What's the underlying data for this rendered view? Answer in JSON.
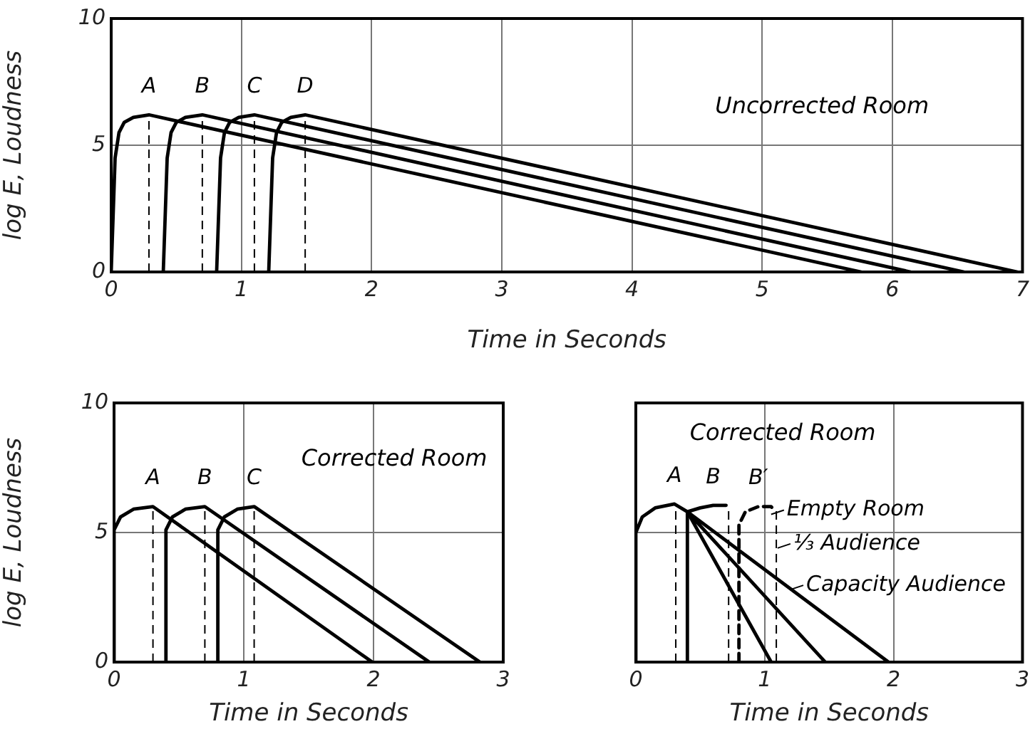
{
  "chart_data": [
    {
      "type": "line",
      "title": "Uncorrected Room",
      "xlabel": "Time in Seconds",
      "ylabel": "log E, Loudness",
      "xlim": [
        0,
        7
      ],
      "ylim": [
        0,
        10
      ],
      "xticks": [
        0,
        1,
        2,
        3,
        4,
        5,
        6,
        7
      ],
      "yticks": [
        0,
        5,
        10
      ],
      "grid": true,
      "marker": "none",
      "line_style": "solid",
      "series": [
        {
          "name": "A",
          "color": "#000000",
          "x": [
            0,
            0.03,
            0.06,
            0.1,
            0.17,
            0.29,
            5.76
          ],
          "values": [
            0,
            4.5,
            5.5,
            5.9,
            6.1,
            6.2,
            0
          ]
        },
        {
          "name": "B",
          "color": "#000000",
          "x": [
            0.4,
            0.43,
            0.46,
            0.5,
            0.57,
            0.7,
            6.14
          ],
          "values": [
            0,
            4.5,
            5.5,
            5.9,
            6.1,
            6.2,
            0
          ]
        },
        {
          "name": "C",
          "color": "#000000",
          "x": [
            0.81,
            0.84,
            0.87,
            0.91,
            0.98,
            1.1,
            6.55
          ],
          "values": [
            0,
            4.5,
            5.5,
            5.9,
            6.1,
            6.2,
            0
          ]
        },
        {
          "name": "D",
          "color": "#000000",
          "x": [
            1.21,
            1.24,
            1.27,
            1.31,
            1.38,
            1.49,
            6.96
          ],
          "values": [
            0,
            4.5,
            5.5,
            5.9,
            6.1,
            6.2,
            0
          ]
        }
      ],
      "ref_lines": [
        {
          "axis": "x",
          "value": 0.29,
          "line_style": "dashed"
        },
        {
          "axis": "x",
          "value": 0.7,
          "line_style": "dashed"
        },
        {
          "axis": "x",
          "value": 1.1,
          "line_style": "dashed"
        },
        {
          "axis": "x",
          "value": 1.49,
          "line_style": "dashed"
        }
      ]
    },
    {
      "type": "line",
      "title": "Corrected Room",
      "xlabel": "Time in Seconds",
      "ylabel": "log E, Loudness",
      "xlim": [
        0,
        3
      ],
      "ylim": [
        0,
        10
      ],
      "xticks": [
        0,
        1,
        2,
        3
      ],
      "yticks": [
        0,
        5,
        10
      ],
      "grid": true,
      "marker": "none",
      "line_style": "solid",
      "series": [
        {
          "name": "A",
          "color": "#000000",
          "x": [
            0,
            0,
            0.05,
            0.15,
            0.3,
            1.99
          ],
          "values": [
            0,
            5.1,
            5.6,
            5.9,
            6.0,
            0
          ]
        },
        {
          "name": "B",
          "color": "#000000",
          "x": [
            0.4,
            0.4,
            0.45,
            0.55,
            0.7,
            2.43
          ],
          "values": [
            0,
            5.1,
            5.6,
            5.9,
            6.0,
            0
          ]
        },
        {
          "name": "C",
          "color": "#000000",
          "x": [
            0.8,
            0.8,
            0.85,
            0.95,
            1.08,
            2.82
          ],
          "values": [
            0,
            5.1,
            5.6,
            5.9,
            6.0,
            0
          ]
        }
      ],
      "ref_lines": [
        {
          "axis": "x",
          "value": 0.3,
          "line_style": "dashed"
        },
        {
          "axis": "x",
          "value": 0.7,
          "line_style": "dashed"
        },
        {
          "axis": "x",
          "value": 1.08,
          "line_style": "dashed"
        }
      ]
    },
    {
      "type": "line",
      "title": "Corrected Room",
      "xlabel": "Time in Seconds",
      "xlim": [
        0,
        3
      ],
      "ylim": [
        0,
        10
      ],
      "xticks": [
        0,
        1,
        2,
        3
      ],
      "yticks": [
        0,
        5,
        10
      ],
      "tick_labels": "x",
      "grid": true,
      "marker": "none",
      "line_style": "solid",
      "series": [
        {
          "name": "A",
          "color": "#000000",
          "x": [
            0,
            0,
            0.05,
            0.15,
            0.3,
            0.4,
            1.05,
            null,
            0.4,
            1.47,
            null,
            0.4,
            1.96
          ],
          "values": [
            0,
            5,
            5.6,
            5.95,
            6.1,
            5.8,
            0,
            null,
            5.8,
            0,
            null,
            5.8,
            0
          ]
        },
        {
          "name": "B",
          "color": "#000000",
          "x": [
            0.4,
            0.4,
            0.5,
            0.6,
            0.7
          ],
          "values": [
            0,
            5.8,
            5.95,
            6.05,
            6.05
          ]
        },
        {
          "name": "B′",
          "color": "#000000",
          "line_style": "dashed",
          "x": [
            0.8,
            0.8,
            0.85,
            0.95,
            1.05,
            1.08
          ],
          "values": [
            0,
            5.3,
            5.8,
            6.0,
            6.0,
            5.8
          ]
        }
      ],
      "ref_lines": [
        {
          "axis": "x",
          "value": 0.31,
          "line_style": "dashed"
        },
        {
          "axis": "x",
          "value": 0.72,
          "line_style": "dashed"
        },
        {
          "axis": "x",
          "value": 1.09,
          "line_style": "dashed"
        }
      ],
      "annotations": [
        {
          "text": "Empty Room",
          "x": 1.05,
          "y": 5.7
        },
        {
          "text": "⅓ Audience",
          "x": 1.1,
          "y": 4.4
        },
        {
          "text": "Capacity Audience",
          "x": 1.2,
          "y": 2.8
        }
      ]
    }
  ]
}
